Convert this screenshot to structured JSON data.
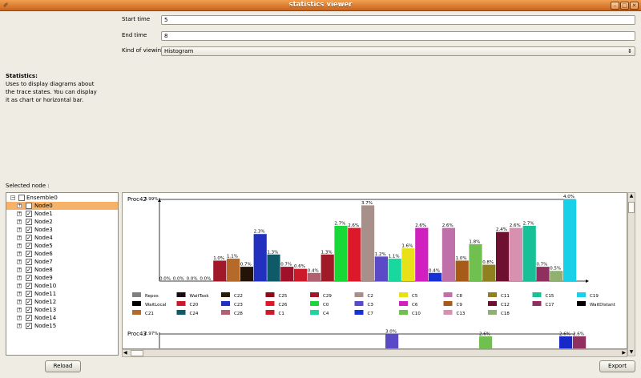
{
  "window": {
    "title": "statistics viewer"
  },
  "form": {
    "start_label": "Start time",
    "start_value": "5",
    "end_label": "End time",
    "end_value": "8",
    "kind_label": "Kind of viewing",
    "kind_value": "Histogram"
  },
  "description": {
    "heading": "Statistics:",
    "line1": "Uses to display diagrams about",
    "line2": "the trace states. You can display",
    "line3": "it as chart or horizontal bar."
  },
  "selected_node_label": "Selected node :",
  "tree": {
    "root": "Ensemble0",
    "nodes": [
      "Node0",
      "Node1",
      "Node2",
      "Node3",
      "Node4",
      "Node5",
      "Node6",
      "Node7",
      "Node8",
      "Node9",
      "Node10",
      "Node11",
      "Node12",
      "Node13",
      "Node14",
      "Node15"
    ],
    "selected": "Node0"
  },
  "buttons": {
    "reload": "Reload",
    "export": "Export"
  },
  "chart_data": [
    {
      "type": "bar",
      "title": "Proc42",
      "ylim": [
        0,
        3.99
      ],
      "top_tick": "3.99%",
      "series": [
        {
          "name": "Repos",
          "value": 0.0,
          "label": "0.0%",
          "color": "#666666"
        },
        {
          "name": "WaitTask",
          "value": 0.0,
          "label": "0.0%",
          "color": "#1a0a18"
        },
        {
          "name": "C22",
          "value": 0.0,
          "label": "0.0%",
          "color": "#2a1a08"
        },
        {
          "name": "C25",
          "value": 0.0,
          "label": "0.0%",
          "color": "#8a0a18"
        },
        {
          "name": "C29",
          "value": 1.0,
          "label": "1.0%",
          "color": "#a0182a"
        },
        {
          "name": "C2",
          "value": 1.1,
          "label": "1.1%",
          "color": "#b56a2a"
        },
        {
          "name": "C5",
          "value": 0.7,
          "label": "0.7%",
          "color": "#241408"
        },
        {
          "name": "C8",
          "value": 2.3,
          "label": "2.3%",
          "color": "#2230c0"
        },
        {
          "name": "C11",
          "value": 1.3,
          "label": "1.3%",
          "color": "#0e5a66"
        },
        {
          "name": "C15",
          "value": 0.7,
          "label": "0.7%",
          "color": "#a0102a"
        },
        {
          "name": "C19",
          "value": 0.6,
          "label": "0.6%",
          "color": "#cc1a2a"
        },
        {
          "name": "WaitLocal",
          "value": 0.4,
          "label": "0.4%",
          "color": "#b06070"
        },
        {
          "name": "C20",
          "value": 1.3,
          "label": "1.3%",
          "color": "#a01a28"
        },
        {
          "name": "C23",
          "value": 2.7,
          "label": "2.7%",
          "color": "#18d838"
        },
        {
          "name": "C26",
          "value": 2.6,
          "label": "2.6%",
          "color": "#dd1828"
        },
        {
          "name": "C0",
          "value": 3.7,
          "label": "3.7%",
          "color": "#a8908a"
        },
        {
          "name": "C3",
          "value": 1.2,
          "label": "1.2%",
          "color": "#5a4ac8"
        },
        {
          "name": "C6",
          "value": 1.1,
          "label": "1.1%",
          "color": "#18d8a0"
        },
        {
          "name": "C9",
          "value": 1.6,
          "label": "1.6%",
          "color": "#e8e018"
        },
        {
          "name": "C12",
          "value": 2.6,
          "label": "2.6%",
          "color": "#d020c0"
        },
        {
          "name": "C17",
          "value": 0.4,
          "label": "0.4%",
          "color": "#1830d8"
        },
        {
          "name": "WaitDistant",
          "value": 2.6,
          "label": "2.6%",
          "color": "#c070a8"
        },
        {
          "name": "C21",
          "value": 1.0,
          "label": "1.0%",
          "color": "#a85a18"
        },
        {
          "name": "C24",
          "value": 1.8,
          "label": "1.8%",
          "color": "#70c050"
        },
        {
          "name": "C28",
          "value": 0.8,
          "label": "0.8%",
          "color": "#908020"
        },
        {
          "name": "C1",
          "value": 2.4,
          "label": "2.4%",
          "color": "#701030"
        },
        {
          "name": "C4",
          "value": 2.6,
          "label": "2.6%",
          "color": "#d890b0"
        },
        {
          "name": "C7",
          "value": 2.7,
          "label": "2.7%",
          "color": "#18c098"
        },
        {
          "name": "C10",
          "value": 0.7,
          "label": "0.7%",
          "color": "#903060"
        },
        {
          "name": "C13",
          "value": 0.5,
          "label": "0.5%",
          "color": "#90b070"
        },
        {
          "name": "C18",
          "value": 4.0,
          "label": "4.0%",
          "color": "#18d0e8"
        }
      ]
    },
    {
      "type": "bar",
      "title": "Proc43",
      "top_tick": "2.97%",
      "ylim": [
        0,
        2.97
      ],
      "series": [
        {
          "name": "C0",
          "value": 3.0,
          "label": "3.0%",
          "color": "#5a4ac8"
        },
        {
          "name": "C24",
          "value": 2.6,
          "label": "2.6%",
          "color": "#70c050"
        },
        {
          "name": "C7",
          "value": 2.6,
          "label": "2.6%",
          "color": "#1828c8"
        },
        {
          "name": "C10",
          "value": 2.6,
          "label": "2.6%",
          "color": "#903060"
        }
      ]
    }
  ],
  "legend": [
    {
      "name": "Repos",
      "color": "#808080"
    },
    {
      "name": "WaitTask",
      "color": "#1a0a18"
    },
    {
      "name": "C22",
      "color": "#2a1a08"
    },
    {
      "name": "C25",
      "color": "#8a0a18"
    },
    {
      "name": "C29",
      "color": "#a0182a"
    },
    {
      "name": "C2",
      "color": "#a8908a"
    },
    {
      "name": "C5",
      "color": "#e8e018"
    },
    {
      "name": "C8",
      "color": "#c070a8"
    },
    {
      "name": "C11",
      "color": "#908020"
    },
    {
      "name": "C15",
      "color": "#18c098"
    },
    {
      "name": "C19",
      "color": "#18d0e8"
    },
    {
      "name": "WaitLocal",
      "color": "#000000"
    },
    {
      "name": "C20",
      "color": "#cc1a2a"
    },
    {
      "name": "C23",
      "color": "#2230c0"
    },
    {
      "name": "C26",
      "color": "#dd1828"
    },
    {
      "name": "C0",
      "color": "#18d838"
    },
    {
      "name": "C3",
      "color": "#5a4ac8"
    },
    {
      "name": "C6",
      "color": "#d020c0"
    },
    {
      "name": "C9",
      "color": "#a85a18"
    },
    {
      "name": "C12",
      "color": "#701030"
    },
    {
      "name": "C17",
      "color": "#903060"
    },
    {
      "name": "WaitDistant",
      "color": "#000000"
    },
    {
      "name": "C21",
      "color": "#b56a2a"
    },
    {
      "name": "C24",
      "color": "#0e5a66"
    },
    {
      "name": "C28",
      "color": "#b06070"
    },
    {
      "name": "C1",
      "color": "#cc1a2a"
    },
    {
      "name": "C4",
      "color": "#18d8a0"
    },
    {
      "name": "C7",
      "color": "#1830d8"
    },
    {
      "name": "C10",
      "color": "#70c050"
    },
    {
      "name": "C13",
      "color": "#d890b0"
    },
    {
      "name": "C18",
      "color": "#90b070"
    }
  ]
}
